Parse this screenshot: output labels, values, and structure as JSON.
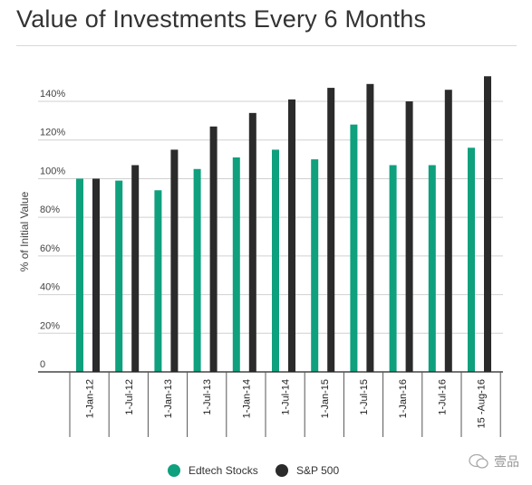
{
  "title": "Value of Investments Every 6 Months",
  "watermark": "壹品",
  "chart_data": {
    "type": "bar",
    "title": "Value of Investments Every 6 Months",
    "ylabel": "% of Initial Value",
    "xlabel": "",
    "ylim": [
      0,
      155
    ],
    "yticks": [
      0,
      20,
      40,
      60,
      80,
      100,
      120,
      140
    ],
    "ytick_labels": [
      "0",
      "20%",
      "40%",
      "60%",
      "80%",
      "100%",
      "120%",
      "140%"
    ],
    "grid": true,
    "legend_position": "bottom",
    "categories": [
      "1-Jan-12",
      "1-Jul-12",
      "1-Jan-13",
      "1-Jul-13",
      "1-Jan-14",
      "1-Jul-14",
      "1-Jan-15",
      "1-Jul-15",
      "1-Jan-16",
      "1-Jul-16",
      "15 -Aug-16"
    ],
    "series": [
      {
        "name": "Edtech Stocks",
        "color": "#0fa07e",
        "values": [
          100,
          99,
          94,
          105,
          111,
          115,
          110,
          128,
          107,
          107,
          116
        ]
      },
      {
        "name": "S&P 500",
        "color": "#2b2b2b",
        "values": [
          100,
          107,
          115,
          127,
          134,
          141,
          147,
          149,
          140,
          146,
          153
        ]
      }
    ]
  }
}
